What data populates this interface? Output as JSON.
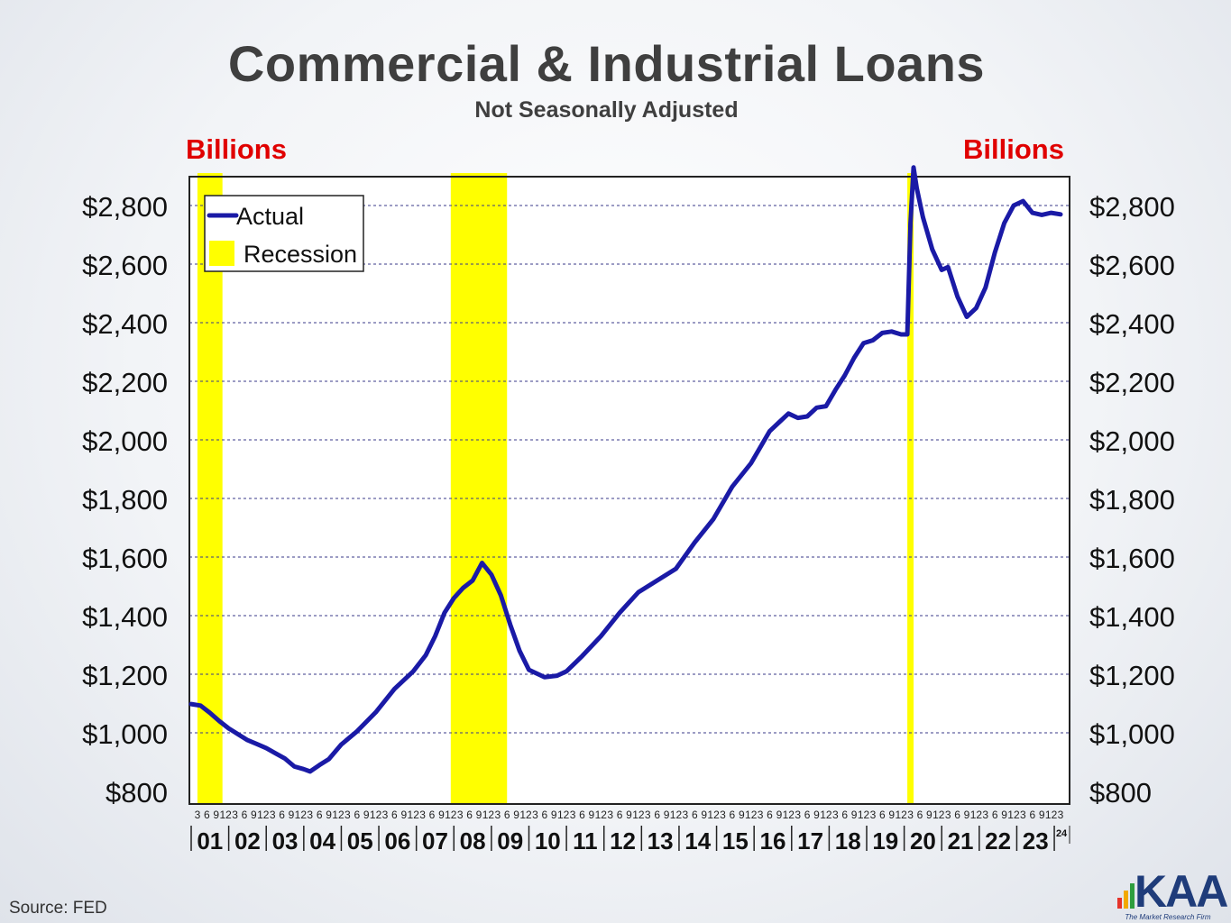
{
  "title": "Commercial & Industrial Loans",
  "subtitle": "Not Seasonally Adjusted",
  "unit_left": "Billions",
  "unit_right": "Billions",
  "source": "Source: FED",
  "logo": {
    "text": "KAA",
    "tagline": "The Market Research Firm"
  },
  "colors": {
    "line": "#1a1aa6",
    "recession": "#ffff00",
    "units": "#e00000",
    "title": "#3f3f3f"
  },
  "chart_data": {
    "type": "line",
    "title": "Commercial & Industrial Loans",
    "ylabel": "Billions",
    "ylim": [
      800,
      2900
    ],
    "yticks": [
      800,
      1000,
      1200,
      1400,
      1600,
      1800,
      2000,
      2200,
      2400,
      2600,
      2800
    ],
    "ytick_labels": [
      "$800",
      "$1,000",
      "$1,200",
      "$1,400",
      "$1,600",
      "$1,800",
      "$2,000",
      "$2,200",
      "$2,400",
      "$2,600",
      "$2,800"
    ],
    "xlim": [
      "2001-01",
      "2024-03"
    ],
    "year_labels": [
      "01",
      "02",
      "03",
      "04",
      "05",
      "06",
      "07",
      "08",
      "09",
      "10",
      "11",
      "12",
      "13",
      "14",
      "15",
      "16",
      "17",
      "18",
      "19",
      "20",
      "21",
      "22",
      "23",
      "24"
    ],
    "month_tick_labels": [
      "3",
      "6",
      "9",
      "12"
    ],
    "grid": "horizontal dashed",
    "legend": {
      "position": "top-left",
      "entries": [
        "Actual",
        "Recession"
      ]
    },
    "recessions": [
      {
        "start": "2001-03",
        "end": "2001-11"
      },
      {
        "start": "2007-12",
        "end": "2009-06"
      },
      {
        "start": "2020-02",
        "end": "2020-04"
      }
    ],
    "series": [
      {
        "name": "Actual",
        "points": [
          [
            "2001-01",
            1098
          ],
          [
            "2001-04",
            1093
          ],
          [
            "2001-07",
            1068
          ],
          [
            "2001-10",
            1040
          ],
          [
            "2002-01",
            1015
          ],
          [
            "2002-04",
            995
          ],
          [
            "2002-07",
            975
          ],
          [
            "2002-10",
            962
          ],
          [
            "2003-01",
            948
          ],
          [
            "2003-04",
            930
          ],
          [
            "2003-07",
            912
          ],
          [
            "2003-10",
            885
          ],
          [
            "2004-01",
            876
          ],
          [
            "2004-03",
            868
          ],
          [
            "2004-06",
            890
          ],
          [
            "2004-09",
            910
          ],
          [
            "2005-01",
            960
          ],
          [
            "2005-06",
            1005
          ],
          [
            "2005-12",
            1070
          ],
          [
            "2006-06",
            1150
          ],
          [
            "2006-12",
            1210
          ],
          [
            "2007-04",
            1265
          ],
          [
            "2007-07",
            1330
          ],
          [
            "2007-10",
            1410
          ],
          [
            "2008-01",
            1460
          ],
          [
            "2008-04",
            1495
          ],
          [
            "2008-07",
            1520
          ],
          [
            "2008-10",
            1580
          ],
          [
            "2009-01",
            1540
          ],
          [
            "2009-04",
            1470
          ],
          [
            "2009-07",
            1370
          ],
          [
            "2009-10",
            1280
          ],
          [
            "2010-01",
            1215
          ],
          [
            "2010-06",
            1190
          ],
          [
            "2010-10",
            1195
          ],
          [
            "2011-01",
            1210
          ],
          [
            "2011-06",
            1262
          ],
          [
            "2011-12",
            1330
          ],
          [
            "2012-06",
            1410
          ],
          [
            "2012-12",
            1480
          ],
          [
            "2013-06",
            1520
          ],
          [
            "2013-12",
            1560
          ],
          [
            "2014-06",
            1650
          ],
          [
            "2014-12",
            1730
          ],
          [
            "2015-06",
            1840
          ],
          [
            "2015-12",
            1920
          ],
          [
            "2016-06",
            2030
          ],
          [
            "2016-09",
            2060
          ],
          [
            "2016-12",
            2090
          ],
          [
            "2017-03",
            2075
          ],
          [
            "2017-06",
            2080
          ],
          [
            "2017-09",
            2110
          ],
          [
            "2017-12",
            2115
          ],
          [
            "2018-03",
            2170
          ],
          [
            "2018-06",
            2220
          ],
          [
            "2018-09",
            2280
          ],
          [
            "2018-12",
            2330
          ],
          [
            "2019-03",
            2340
          ],
          [
            "2019-06",
            2365
          ],
          [
            "2019-09",
            2370
          ],
          [
            "2019-12",
            2360
          ],
          [
            "2020-02",
            2360
          ],
          [
            "2020-03",
            2740
          ],
          [
            "2020-04",
            2930
          ],
          [
            "2020-05",
            2860
          ],
          [
            "2020-07",
            2760
          ],
          [
            "2020-10",
            2650
          ],
          [
            "2021-01",
            2580
          ],
          [
            "2021-03",
            2590
          ],
          [
            "2021-06",
            2490
          ],
          [
            "2021-09",
            2420
          ],
          [
            "2021-12",
            2450
          ],
          [
            "2022-03",
            2520
          ],
          [
            "2022-06",
            2640
          ],
          [
            "2022-09",
            2740
          ],
          [
            "2022-12",
            2800
          ],
          [
            "2023-03",
            2815
          ],
          [
            "2023-06",
            2775
          ],
          [
            "2023-09",
            2768
          ],
          [
            "2023-12",
            2775
          ],
          [
            "2024-03",
            2770
          ]
        ]
      }
    ]
  }
}
